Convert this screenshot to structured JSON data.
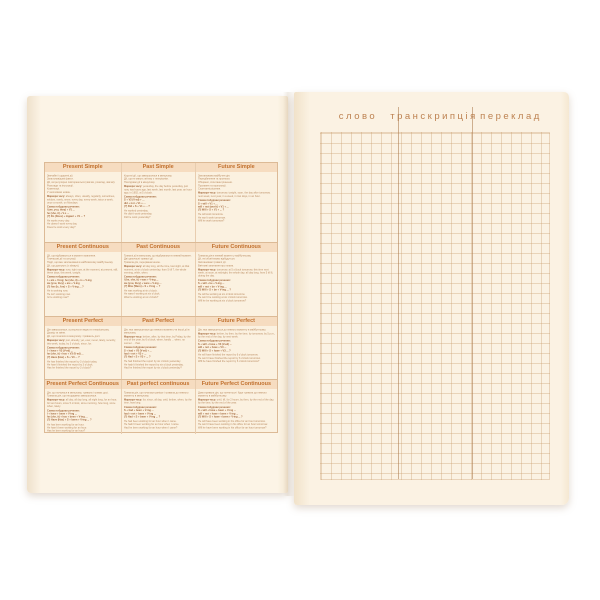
{
  "colors": {
    "page_left": "#fcf4e6",
    "page_right": "#fbf2e3",
    "table_border": "#dcba96",
    "table_header_bg": "#f6dcc0",
    "table_header_text": "#c1702d",
    "body_text": "#b98a5f",
    "bold_text": "#a4683a",
    "vocab_header_text": "#bd8251"
  },
  "left_page": {
    "table": {
      "markers_label": "Маркери часу:",
      "scheme_label": "Схема побудови речення:",
      "rows": [
        {
          "cells": [
            {
              "title": "Present Simple",
              "desc": [
                "Звичайні і щоденні дії.",
                "Загальновідомі факти.",
                "Дії, які регулярно повторюються (звички, розклад, звичаї).",
                "Розклади та інструкції.",
                "Коментарі.",
                "У заголовках новин."
              ],
              "markers": "always, often, usually, regularly, sometimes, seldom, rarely, never, every day, every week, twice a week, once a month, on Mondays.",
              "scheme": [
                "I (we, you, they) + V1 ...",
                "he (she, it) + V-s ...",
                "(?) Do (Does) + підмет + V1 ... ?"
              ],
              "examples": [
                "He works every day.",
                "He doesn't work every day.",
                "Does he work every day?"
              ]
            },
            {
              "title": "Past Simple",
              "desc": [
                "Короткі дії, що завершилися в минулому.",
                "Дії, що не мають зв'язку з теперішнім.",
                "Послідовні дії в минулому."
              ],
              "markers": "yesterday, the day before yesterday, just now, two hours ago, last week, last month, last year, an hour ago, in 1992, at 5 o'clock.",
              "scheme": [
                "S + V2 (V-ed) + ...",
                "did + not + V1 + ...",
                "(?) Did + S + V1 + ... ?"
              ],
              "examples": [
                "He worked yesterday.",
                "He didn't work yesterday.",
                "Did he work yesterday?"
              ]
            },
            {
              "title": "Future Simple",
              "desc": [
                "Запланована майбутня дія.",
                "Передбачення та прогнози.",
                "Обіцянки, спонтанні рішення.",
                "Прохання та пропозиції.",
                "Спонтанні рішення."
              ],
              "markers": "tomorrow, tonight, soon, the day after tomorrow, next week, next year, in a week, in two days, in an hour.",
              "scheme": [
                "S + will + V1 + ...",
                "will + not (won't) + V1 + ...",
                "(?) Will + S + V1 + ... ?"
              ],
              "examples": [
                "He will work tomorrow.",
                "He won't work tomorrow.",
                "Will he work tomorrow?"
              ]
            }
          ]
        },
        {
          "cells": [
            {
              "title": "Present Continuous",
              "desc": [
                "Дії, що відбуваються в момент мовлення.",
                "Тимчасові дії та ситуації.",
                "Події, що вже заплановані в найближчому майбутньому.",
                "Дії, що дратують (з always)."
              ],
              "markers": "now, right now, at the moment, at present, still, these days, this week, tonight.",
              "scheme": [
                "I + am + V-ing; he (she, it) + is + V-ing",
                "we (you, they) + are + V-ing",
                "(?) Am (Is, Are) + S + V-ing ... ?"
              ],
              "examples": [
                "He is working now.",
                "He isn't working now.",
                "Is he working now?"
              ]
            },
            {
              "title": "Past Continuous",
              "desc": [
                "Тривалі дії в минулому, що відбувалися в певний момент.",
                "Дві одночасні тривалі дії.",
                "Тривала дія, перервана іншою."
              ],
              "markers": "all day long, all the time, last night, at that moment, at six o'clock yesterday, from 5 till 7, the whole evening, while, when.",
              "scheme": [
                "I (he, she, it) + was + V-ing ...",
                "we (you, they) + were + V-ing ...",
                "(?) Was (Were) + S + V-ing ... ?"
              ],
              "examples": [
                "He was working at six o'clock.",
                "He wasn't working at six o'clock.",
                "Was he working at six o'clock?"
              ]
            },
            {
              "title": "Future Continuous",
              "desc": [
                "Тривала дія в певний момент у майбутньому.",
                "Дії, які обов'язково відбудуться.",
                "Заплановані тривалі дії.",
                "Ввічливі запитання про плани."
              ],
              "markers": "tomorrow, at 5 o'clock tomorrow, this time next week, at noon, at midnight, the whole day, all day long, from 5 till 6, during the day.",
              "scheme": [
                "S + will + be + V-ing ...",
                "will + not + be + V-ing ...",
                "(?) Will + S + be + V-ing ... ?"
              ],
              "examples": [
                "He will be working at six o'clock tomorrow.",
                "He won't be working at six o'clock tomorrow.",
                "Will he be working at six o'clock tomorrow?"
              ]
            }
          ]
        },
        {
          "cells": [
            {
              "title": "Present Perfect",
              "desc": [
                "Дія завершилася, а результат видно в теперішньому.",
                "Досвід та зміни.",
                "Дії, що почалися в минулому і тривають досі."
              ],
              "markers": "just, already, yet, ever, never, lately, recently, this week, today, by 3 o'clock, since, for.",
              "scheme": [
                "I + have + V3 (V-ed) ...",
                "he (she, it) + has + V3 (V-ed) ...",
                "(?) Have (Has) + S + V3 ... ?"
              ],
              "examples": [
                "He has finished the report by 3 o'clock today.",
                "He hasn't finished the report by 3 o'clock.",
                "Has he finished the report by 3 o'clock?"
              ]
            },
            {
              "title": "Past Perfect",
              "desc": [
                "Дія, яка завершилася до певного моменту чи іншої дії в минулому."
              ],
              "markers": "before, after, by that time, by Friday, by the end of the year, by 6 o'clock, when, hardly ... when, no sooner ... than.",
              "scheme": [
                "S + had + V3 (V-ed) + ...",
                "had + not + V3 + ...",
                "(?) Had + S + V3 + ... ?"
              ],
              "examples": [
                "He had finished the report by six o'clock yesterday.",
                "He hadn't finished the report by six o'clock yesterday.",
                "Had he finished the report by six o'clock yesterday?"
              ]
            },
            {
              "title": "Future Perfect",
              "desc": [
                "Дія, яка завершиться до певного моменту в майбутньому."
              ],
              "markers": "before, by then, by the time, by tomorrow, by 5 p.m., by the end of the day, by next week.",
              "scheme": [
                "S + will + have + V3 (V-ed) ...",
                "will + not + have + V3 ...",
                "(?) Will + S + have + V3 ... ?"
              ],
              "examples": [
                "He will have finished the report by 6 o'clock tomorrow.",
                "He won't have finished the report by 6 o'clock tomorrow.",
                "Will he have finished the report by 6 o'clock tomorrow?"
              ]
            }
          ]
        },
        {
          "cells": [
            {
              "title": "Present Perfect Continuous",
              "desc": [
                "Дія, що почалася в минулому, тривала і триває досі.",
                "Тривала дія, що нещодавно завершилася."
              ],
              "markers": "all day, all day long, all night long, for an hour, for two hours, since 5 o'clock, since morning, how long, since when, lately.",
              "scheme": [
                "I + have + been + V-ing ...",
                "he (she, it) + has + been + V-ing ...",
                "(?) Have (Has) + S + been + V-ing ... ?"
              ],
              "examples": [
                "He has been working for an hour.",
                "He hasn't been working for an hour.",
                "Has he been working for an hour?"
              ]
            },
            {
              "title": "Past perfect continuous",
              "desc": [
                "Тривала дія, що почалася раніше і тривала до певного моменту в минулому."
              ],
              "markers": "for, since, all day, until, before, when, by the time, how long.",
              "scheme": [
                "S + had + been + V-ing ...",
                "had + not + been + V-ing ...",
                "(?) Had + S + been + V-ing ... ?"
              ],
              "examples": [
                "He had been working for an hour when I came.",
                "He hadn't been working for an hour when I came.",
                "Had he been working for an hour when I came?"
              ]
            },
            {
              "title": "Future Perfect Continuous",
              "desc": [
                "Довготривала дія, що почнеться і буде тривати до певного моменту в майбутньому."
              ],
              "markers": "until, till, for 2 hours, by then, by the end of the day, by the time, by the end of the year.",
              "scheme": [
                "S + will + have + been + V-ing ...",
                "will + not + have + been + V-ing ...",
                "(?) Will + S + have + been + V-ing ... ?"
              ],
              "examples": [
                "He will have been working in his office for an hour tomorrow.",
                "He won't have been working in his office for an hour tomorrow.",
                "Will he have been working in his office for an hour tomorrow?"
              ]
            }
          ]
        }
      ]
    }
  },
  "right_page": {
    "headers": [
      "слово",
      "транскрипція",
      "переклад"
    ]
  }
}
